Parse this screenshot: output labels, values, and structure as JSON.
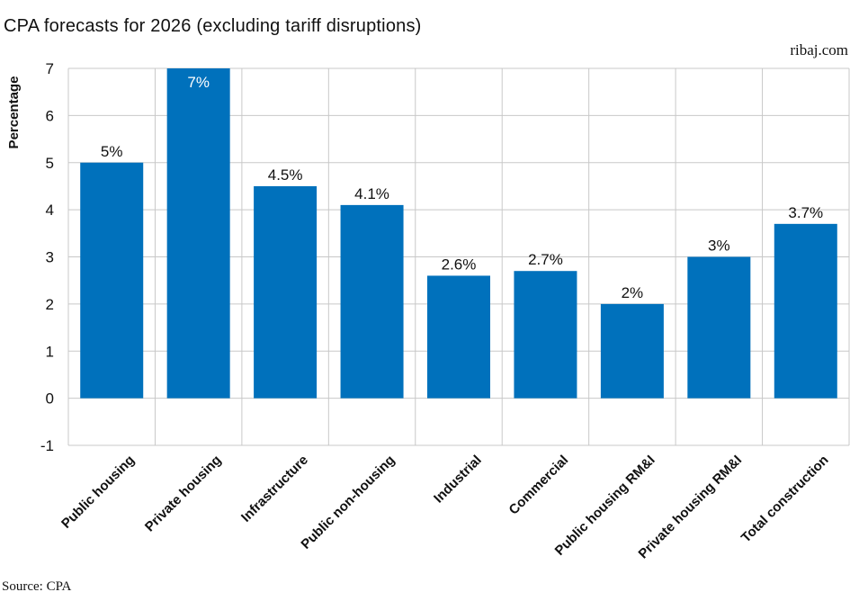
{
  "source": "Source: CPA",
  "brand": "ribaj.com",
  "colors": {
    "bar": "#0071bc",
    "grid": "#c8c8c8",
    "text": "#111111"
  },
  "chart_data": {
    "type": "bar",
    "title": "CPA forecasts for 2026 (excluding tariff disruptions)",
    "xlabel": "",
    "ylabel": "Percentage",
    "ylim": [
      -1,
      7
    ],
    "yticks": [
      "-1",
      "0",
      "1",
      "2",
      "3",
      "4",
      "5",
      "6",
      "7"
    ],
    "categories": [
      "Public housing",
      "Private housing",
      "Infrastructure",
      "Public non-housing",
      "Industrial",
      "Commercial",
      "Public housing RM&I",
      "Private housing RM&I",
      "Total construction"
    ],
    "values": [
      5,
      7,
      4.5,
      4.1,
      2.6,
      2.7,
      2,
      3,
      3.7
    ],
    "labels": [
      "5%",
      "7%",
      "4.5%",
      "4.1%",
      "2.6%",
      "2.7%",
      "2%",
      "3%",
      "3.7%"
    ],
    "grid": true
  }
}
